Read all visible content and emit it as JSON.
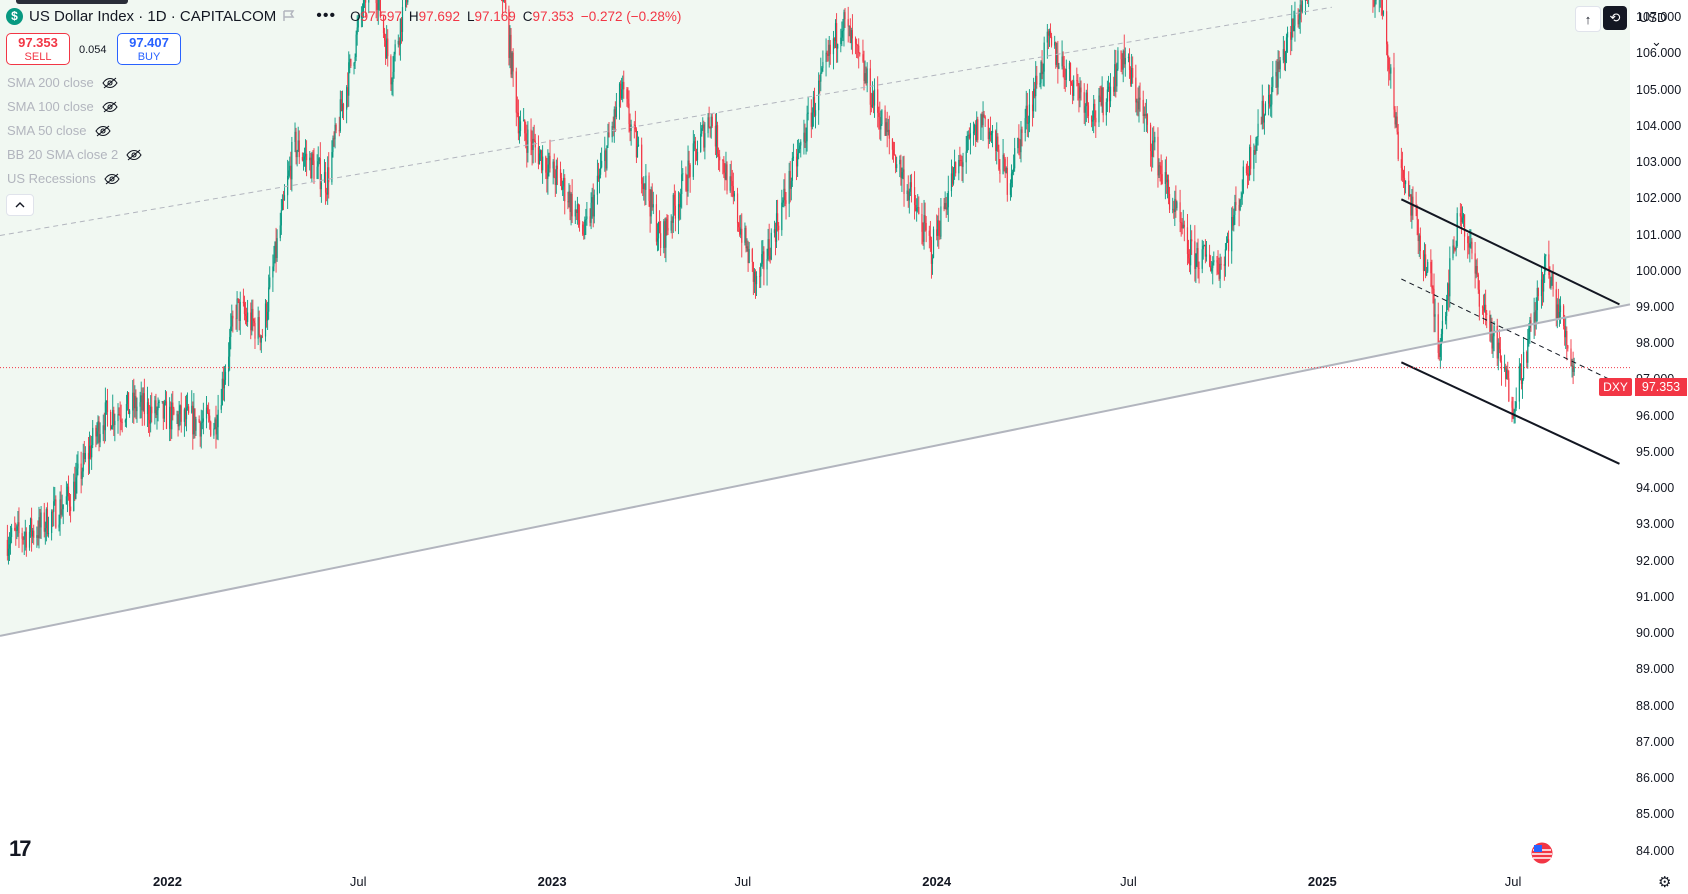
{
  "header": {
    "symbol_badge": "$",
    "title": "US Dollar Index · 1D · CAPITALCOM",
    "more_label": "•••",
    "ohlc": {
      "o_key": "O",
      "o_val": "97.597",
      "h_key": "H",
      "h_val": "97.692",
      "l_key": "L",
      "l_val": "97.169",
      "c_key": "C",
      "c_val": "97.353",
      "change": "−0.272 (−0.28%)"
    }
  },
  "trade": {
    "sell_price": "97.353",
    "sell_label": "SELL",
    "spread": "0.054",
    "buy_price": "97.407",
    "buy_label": "BUY"
  },
  "indicators": [
    {
      "label": "SMA 200 close"
    },
    {
      "label": "SMA 100 close"
    },
    {
      "label": "SMA 50 close"
    },
    {
      "label": "BB 20 SMA close 2"
    },
    {
      "label": "US Recessions"
    }
  ],
  "toolbar": {
    "currency": "USD",
    "currency_chevron": "⌄",
    "arrow_label": "↑",
    "auto_label": "⟲"
  },
  "price_tag": {
    "symbol": "DXY",
    "value": "97.353"
  },
  "logo_text": "17",
  "settings_label": "⚙",
  "colors": {
    "up": "#089981",
    "down": "#f23645",
    "channel_fill": "#f1f8f2",
    "channel_line": "#b2b5be",
    "trend_lines": "#131722"
  },
  "chart_data": {
    "type": "candlestick",
    "symbol": "DXY",
    "interval": "1D",
    "y_axis": {
      "ticks": [
        "107.000",
        "106.000",
        "105.000",
        "104.000",
        "103.000",
        "102.000",
        "101.000",
        "100.000",
        "99.000",
        "98.000",
        "97.000",
        "96.000",
        "95.000",
        "94.000",
        "93.000",
        "92.000",
        "91.000",
        "90.000",
        "89.000",
        "88.000",
        "87.000",
        "86.000",
        "85.000",
        "84.000"
      ],
      "range": [
        83.6,
        107.5
      ]
    },
    "x_axis": {
      "ticks": [
        {
          "label": "2022",
          "year": true
        },
        {
          "label": "Jul",
          "year": false
        },
        {
          "label": "2023",
          "year": true
        },
        {
          "label": "Jul",
          "year": false
        },
        {
          "label": "2024",
          "year": true
        },
        {
          "label": "Jul",
          "year": false
        },
        {
          "label": "2025",
          "year": true
        },
        {
          "label": "Jul",
          "year": false
        }
      ],
      "tick_dates": [
        "2022-01-01",
        "2022-07-01",
        "2023-01-01",
        "2023-07-01",
        "2024-01-01",
        "2024-07-01",
        "2025-01-01",
        "2025-07-01"
      ],
      "range": [
        "2021-07-26",
        "2025-10-20"
      ]
    },
    "last_price": 97.353,
    "price_path": [
      [
        "2021-08-01",
        92.6
      ],
      [
        "2021-09-01",
        92.9
      ],
      [
        "2021-10-01",
        93.8
      ],
      [
        "2021-11-01",
        96.0
      ],
      [
        "2021-12-01",
        96.3
      ],
      [
        "2022-01-01",
        96.0
      ],
      [
        "2022-02-15",
        95.8
      ],
      [
        "2022-03-07",
        99.0
      ],
      [
        "2022-04-01",
        98.3
      ],
      [
        "2022-05-01",
        103.5
      ],
      [
        "2022-06-01",
        102.5
      ],
      [
        "2022-07-14",
        108.5
      ],
      [
        "2022-08-01",
        105.5
      ],
      [
        "2022-09-27",
        114.0
      ],
      [
        "2022-11-01",
        111.0
      ],
      [
        "2022-12-01",
        104.0
      ],
      [
        "2023-01-15",
        102.2
      ],
      [
        "2023-02-01",
        101.0
      ],
      [
        "2023-03-08",
        105.0
      ],
      [
        "2023-04-14",
        100.8
      ],
      [
        "2023-05-31",
        104.3
      ],
      [
        "2023-07-14",
        99.6
      ],
      [
        "2023-10-03",
        107.0
      ],
      [
        "2023-12-27",
        100.6
      ],
      [
        "2024-01-15",
        102.5
      ],
      [
        "2024-02-15",
        104.3
      ],
      [
        "2024-03-08",
        102.5
      ],
      [
        "2024-04-16",
        106.3
      ],
      [
        "2024-06-01",
        104.3
      ],
      [
        "2024-06-26",
        106.0
      ],
      [
        "2024-07-15",
        104.3
      ],
      [
        "2024-08-27",
        100.5
      ],
      [
        "2024-09-27",
        100.2
      ],
      [
        "2024-11-01",
        104.0
      ],
      [
        "2025-01-13",
        110.0
      ],
      [
        "2025-02-03",
        108.5
      ],
      [
        "2025-02-28",
        107.3
      ],
      [
        "2025-03-15",
        103.2
      ],
      [
        "2025-04-15",
        99.5
      ],
      [
        "2025-04-21",
        97.9
      ],
      [
        "2025-05-12",
        101.8
      ],
      [
        "2025-06-01",
        99.2
      ],
      [
        "2025-07-01",
        96.4
      ],
      [
        "2025-07-15",
        98.0
      ],
      [
        "2025-08-01",
        100.2
      ],
      [
        "2025-08-20",
        98.2
      ],
      [
        "2025-08-28",
        97.35
      ]
    ],
    "drawings": {
      "rising_channel_lower": [
        [
          "2021-07-26",
          89.95
        ],
        [
          "2025-10-20",
          99.1
        ]
      ],
      "rising_channel_dashed": [
        [
          "2021-07-26",
          101.0
        ],
        [
          "2025-01-10",
          107.3
        ]
      ],
      "falling_channel_upper": [
        [
          "2025-03-17",
          102.0
        ],
        [
          "2025-10-10",
          99.1
        ]
      ],
      "falling_channel_lower": [
        [
          "2025-03-17",
          97.5
        ],
        [
          "2025-10-10",
          94.7
        ]
      ],
      "falling_channel_mid": [
        [
          "2025-03-17",
          99.8
        ],
        [
          "2025-10-10",
          96.9
        ]
      ]
    }
  }
}
